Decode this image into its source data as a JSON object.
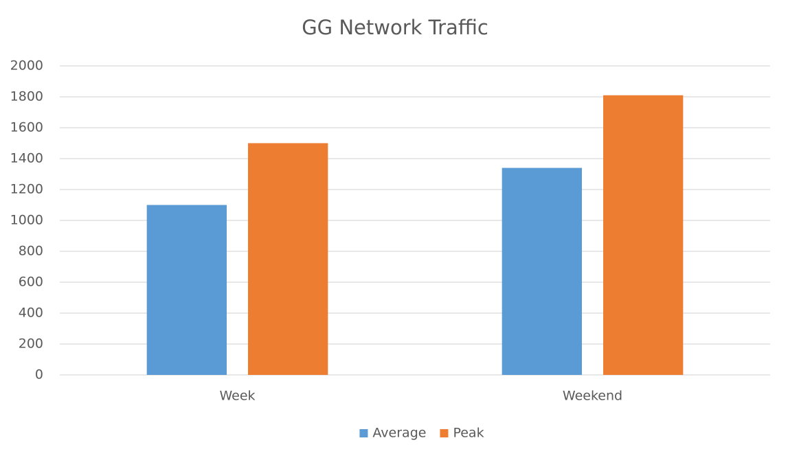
{
  "chart_data": {
    "type": "bar",
    "title": "GG Network Traffic",
    "categories": [
      "Week",
      "Weekend"
    ],
    "series": [
      {
        "name": "Average",
        "color": "#5b9bd5",
        "values": [
          1100,
          1340
        ]
      },
      {
        "name": "Peak",
        "color": "#ed7d31",
        "values": [
          1500,
          1810
        ]
      }
    ],
    "ylim": [
      0,
      2000
    ],
    "yticks": [
      0,
      200,
      400,
      600,
      800,
      1000,
      1200,
      1400,
      1600,
      1800,
      2000
    ],
    "grid": true,
    "legend": "bottom"
  }
}
